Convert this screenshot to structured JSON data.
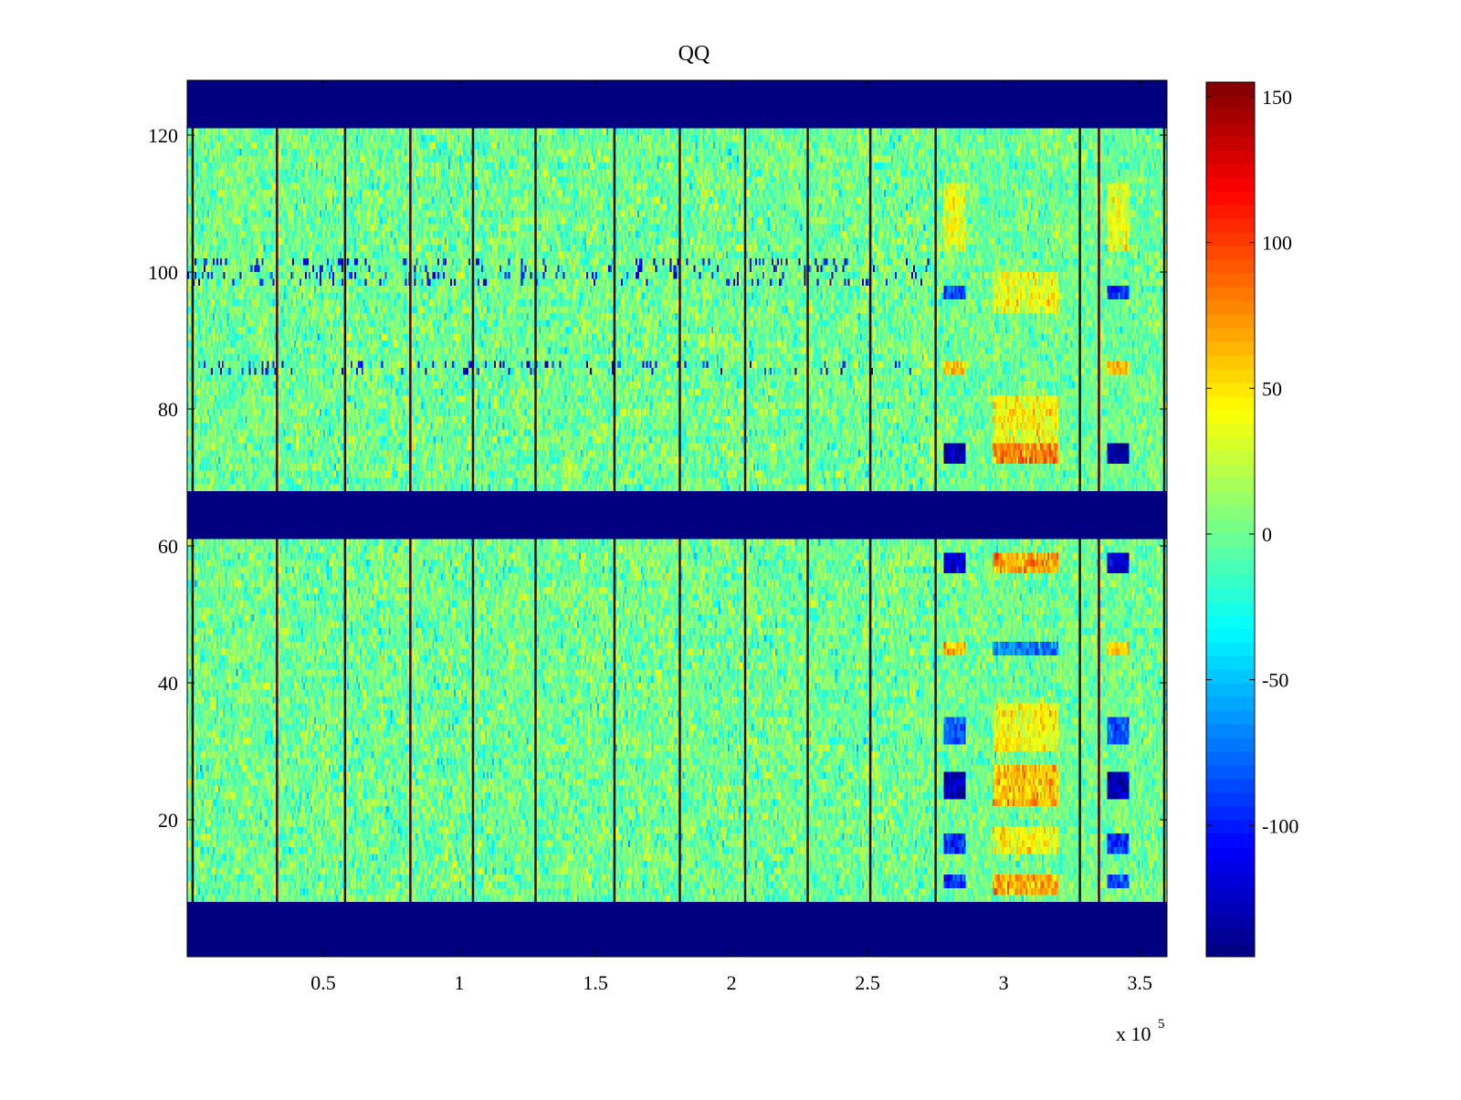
{
  "chart_data": {
    "type": "heatmap",
    "title": "QQ",
    "xlabel": "",
    "ylabel": "",
    "x_exponent_label": "x 10",
    "x_exponent": "5",
    "xlim": [
      0,
      3.6
    ],
    "ylim": [
      0,
      128
    ],
    "x_ticks": [
      0.5,
      1,
      1.5,
      2,
      2.5,
      3,
      3.5
    ],
    "x_tick_labels": [
      "0.5",
      "1",
      "1.5",
      "2",
      "2.5",
      "3",
      "3.5"
    ],
    "y_ticks": [
      20,
      40,
      60,
      80,
      100,
      120
    ],
    "y_tick_labels": [
      "20",
      "40",
      "60",
      "80",
      "100",
      "120"
    ],
    "colormap": "jet",
    "clim": [
      -145,
      155
    ],
    "colorbar": {
      "ticks": [
        -100,
        -50,
        0,
        50,
        100,
        150
      ],
      "tick_labels": [
        "-100",
        "-50",
        "0",
        "50",
        "100",
        "150"
      ]
    },
    "empty_rows": [
      [
        0,
        8
      ],
      [
        61,
        68
      ],
      [
        121,
        128
      ]
    ],
    "empty_value": -145,
    "band_rows": [
      [
        8,
        61
      ],
      [
        68,
        121
      ]
    ],
    "vertical_lines_x": [
      0.02,
      0.33,
      0.58,
      0.82,
      1.05,
      1.28,
      1.57,
      1.81,
      2.05,
      2.28,
      2.51,
      2.75,
      3.28,
      3.35,
      3.59
    ],
    "regions": [
      {
        "x": [
          0.0,
          2.75
        ],
        "description_value": 0,
        "noise": 35
      },
      {
        "x": [
          2.75,
          3.6
        ],
        "description_value": 0,
        "noise": 30
      }
    ],
    "features": [
      {
        "x": [
          2.78,
          2.86
        ],
        "y": [
          72,
          75
        ],
        "value": -135
      },
      {
        "x": [
          3.38,
          3.46
        ],
        "y": [
          72,
          75
        ],
        "value": -135
      },
      {
        "x": [
          2.96,
          3.2
        ],
        "y": [
          72,
          75
        ],
        "value": 75
      },
      {
        "x": [
          2.78,
          2.86
        ],
        "y": [
          23,
          27
        ],
        "value": -130
      },
      {
        "x": [
          3.38,
          3.46
        ],
        "y": [
          23,
          27
        ],
        "value": -130
      },
      {
        "x": [
          2.96,
          3.2
        ],
        "y": [
          22,
          28
        ],
        "value": 60
      },
      {
        "x": [
          2.78,
          2.86
        ],
        "y": [
          56,
          59
        ],
        "value": -120
      },
      {
        "x": [
          3.38,
          3.46
        ],
        "y": [
          56,
          59
        ],
        "value": -120
      },
      {
        "x": [
          2.96,
          3.2
        ],
        "y": [
          56,
          59
        ],
        "value": 70
      },
      {
        "x": [
          2.78,
          2.86
        ],
        "y": [
          44,
          46
        ],
        "value": 60
      },
      {
        "x": [
          3.38,
          3.46
        ],
        "y": [
          44,
          46
        ],
        "value": 60
      },
      {
        "x": [
          2.96,
          3.2
        ],
        "y": [
          44,
          46
        ],
        "value": -70
      },
      {
        "x": [
          2.96,
          3.2
        ],
        "y": [
          30,
          37
        ],
        "value": 40
      },
      {
        "x": [
          2.96,
          3.2
        ],
        "y": [
          75,
          82
        ],
        "value": 40
      },
      {
        "x": [
          2.96,
          3.2
        ],
        "y": [
          9,
          12
        ],
        "value": 65
      },
      {
        "x": [
          2.78,
          2.86
        ],
        "y": [
          10,
          12
        ],
        "value": -90
      },
      {
        "x": [
          3.38,
          3.46
        ],
        "y": [
          10,
          12
        ],
        "value": -90
      },
      {
        "x": [
          2.78,
          2.86
        ],
        "y": [
          96,
          98
        ],
        "value": -90
      },
      {
        "x": [
          3.38,
          3.46
        ],
        "y": [
          96,
          98
        ],
        "value": -90
      },
      {
        "x": [
          2.78,
          2.86
        ],
        "y": [
          85,
          87
        ],
        "value": 55
      },
      {
        "x": [
          3.38,
          3.46
        ],
        "y": [
          85,
          87
        ],
        "value": 55
      },
      {
        "x": [
          2.78,
          2.86
        ],
        "y": [
          103,
          113
        ],
        "value": 35
      },
      {
        "x": [
          3.38,
          3.46
        ],
        "y": [
          103,
          113
        ],
        "value": 35
      },
      {
        "x": [
          2.96,
          3.2
        ],
        "y": [
          94,
          100
        ],
        "value": 35
      },
      {
        "x": [
          2.78,
          2.86
        ],
        "y": [
          31,
          35
        ],
        "value": -85
      },
      {
        "x": [
          3.38,
          3.46
        ],
        "y": [
          31,
          35
        ],
        "value": -85
      },
      {
        "x": [
          2.78,
          2.86
        ],
        "y": [
          15,
          18
        ],
        "value": -95
      },
      {
        "x": [
          3.38,
          3.46
        ],
        "y": [
          15,
          18
        ],
        "value": -95
      },
      {
        "x": [
          2.96,
          3.2
        ],
        "y": [
          15,
          19
        ],
        "value": 40
      }
    ],
    "periodic_marks": {
      "y_rows": [
        99,
        101,
        86
      ],
      "x_range": [
        0.0,
        2.75
      ],
      "value": -110
    }
  }
}
